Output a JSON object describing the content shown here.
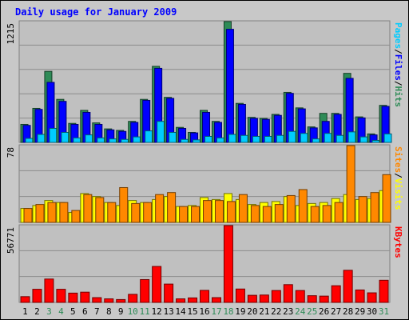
{
  "chart_data": {
    "type": "bar",
    "title": "Daily usage for January 2009",
    "categories": [
      "1",
      "2",
      "3",
      "4",
      "5",
      "6",
      "7",
      "8",
      "9",
      "10",
      "11",
      "12",
      "13",
      "14",
      "15",
      "16",
      "17",
      "18",
      "19",
      "20",
      "21",
      "22",
      "23",
      "24",
      "25",
      "26",
      "27",
      "28",
      "29",
      "30",
      "31"
    ],
    "weekend_days": [
      "3",
      "4",
      "10",
      "11",
      "17",
      "18",
      "24",
      "25",
      "31"
    ],
    "panels": [
      {
        "id": "top",
        "max_label": "1215",
        "ymax": 1215,
        "side_label_parts": [
          "Pages",
          "/",
          "Files",
          "/",
          "Hits"
        ],
        "series": [
          {
            "name": "Hits",
            "color": "#2e8b57",
            "values": [
              180,
              340,
              710,
              430,
              190,
              320,
              195,
              135,
              120,
              210,
              430,
              760,
              450,
              150,
              100,
              320,
              210,
              1215,
              390,
              250,
              240,
              280,
              500,
              345,
              155,
              290,
              290,
              690,
              255,
              85,
              370
            ]
          },
          {
            "name": "Files",
            "color": "#0000ff",
            "values": [
              170,
              330,
              600,
              410,
              180,
              300,
              180,
              125,
              110,
              200,
              420,
              740,
              440,
              140,
              95,
              300,
              200,
              1130,
              380,
              240,
              230,
              270,
              490,
              335,
              145,
              210,
              280,
              640,
              245,
              75,
              360
            ]
          },
          {
            "name": "Pages",
            "color": "#00ccff",
            "values": [
              40,
              80,
              140,
              100,
              45,
              75,
              45,
              35,
              30,
              55,
              115,
              210,
              100,
              30,
              25,
              60,
              45,
              80,
              70,
              60,
              60,
              70,
              110,
              90,
              35,
              90,
              70,
              105,
              55,
              20,
              85
            ]
          }
        ]
      },
      {
        "id": "middle",
        "max_label": "78",
        "ymax": 78,
        "side_label_parts": [
          "Sites",
          "/",
          "Visits"
        ],
        "series": [
          {
            "name": "Visits",
            "color": "#ffff00",
            "values": [
              14,
              17,
              22,
              20,
              10,
              29,
              26,
              20,
              17,
              22,
              20,
              23,
              26,
              16,
              17,
              25,
              23,
              29,
              23,
              18,
              20,
              21,
              26,
              17,
              19,
              20,
              24,
              28,
              23,
              24,
              32
            ]
          },
          {
            "name": "Sites",
            "color": "#ff8800",
            "values": [
              14,
              18,
              20,
              20,
              12,
              28,
              25,
              20,
              35,
              19,
              20,
              28,
              30,
              16,
              16,
              22,
              22,
              21,
              28,
              17,
              16,
              18,
              27,
              33,
              16,
              17,
              20,
              78,
              26,
              30,
              48
            ]
          }
        ]
      },
      {
        "id": "bottom",
        "max_label": "56771",
        "ymax": 56771,
        "side_label_parts": [
          "KBytes"
        ],
        "series": [
          {
            "name": "KBytes",
            "color": "#ff0000",
            "values": [
              4200,
              9600,
              17100,
              9600,
              6800,
              7500,
              3500,
              2600,
              2100,
              5900,
              16700,
              26300,
              13400,
              2600,
              3300,
              8800,
              3500,
              56771,
              9800,
              5200,
              5400,
              8700,
              13000,
              8700,
              4900,
              4600,
              12200,
              23500,
              9100,
              7000,
              16200
            ]
          }
        ]
      }
    ]
  }
}
